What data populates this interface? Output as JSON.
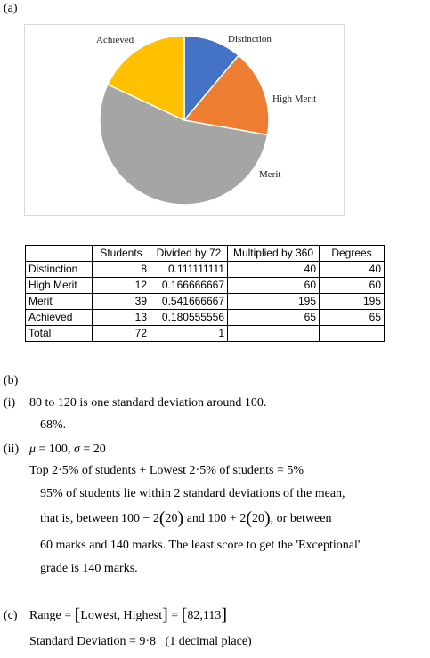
{
  "part_a": {
    "label": "(a)"
  },
  "chart_data": {
    "type": "pie",
    "categories": [
      "Distinction",
      "High Merit",
      "Merit",
      "Achieved"
    ],
    "values": [
      40,
      60,
      195,
      65
    ],
    "colors": [
      "#4472c4",
      "#ed7d31",
      "#a5a5a5",
      "#ffc000"
    ],
    "title": "",
    "legend": "none"
  },
  "table": {
    "headers": [
      "",
      "Students",
      "Divided by 72",
      "Multiplied by 360",
      "Degrees"
    ],
    "rows": [
      [
        "Distinction",
        "8",
        "0.111111111",
        "40",
        "40"
      ],
      [
        "High Merit",
        "12",
        "0.166666667",
        "60",
        "60"
      ],
      [
        "Merit",
        "39",
        "0.541666667",
        "195",
        "195"
      ],
      [
        "Achieved",
        "13",
        "0.180555556",
        "65",
        "65"
      ],
      [
        "Total",
        "72",
        "1",
        "",
        ""
      ]
    ]
  },
  "part_b": {
    "label": "(b)",
    "i_label": "(i)",
    "i_line1": "80 to 120 is one standard deviation around 100.",
    "i_line2": "68%.",
    "ii_label": "(ii)",
    "ii_mu": "μ",
    "ii_eq1": " = 100, ",
    "ii_sigma": "σ",
    "ii_eq2": " = 20",
    "ii_line2": "Top 2·5% of students + Lowest 2·5% of students = 5%",
    "ii_line3": "95% of students lie within 2 standard deviations of the mean,",
    "ii_line4_a": "that is, between 100 − 2",
    "ii_line4_b": "20",
    "ii_line4_c": " and 100 + 2",
    "ii_line4_d": "20",
    "ii_line4_e": ", or between",
    "ii_line5": "60 marks and 140 marks. The least score to get the 'Exceptional'",
    "ii_line6": "grade is 140 marks."
  },
  "part_c": {
    "label": "(c)",
    "range_a": "Range = ",
    "range_b": "Lowest, Highest",
    "range_c": " = ",
    "range_d": "82,113",
    "sd": "Standard Deviation = 9·8   (1 decimal place)"
  }
}
